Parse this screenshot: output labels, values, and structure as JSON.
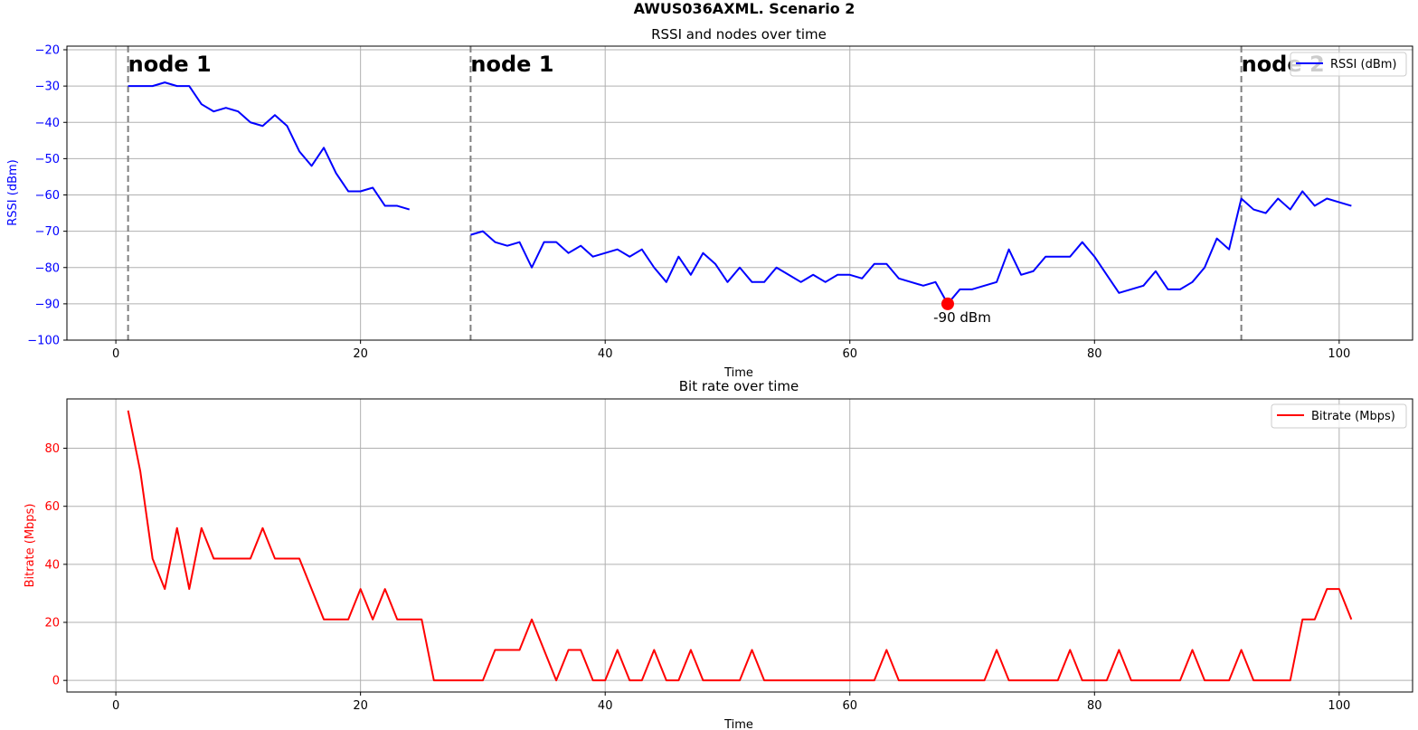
{
  "figure": {
    "suptitle": "AWUS036AXML. Scenario 2"
  },
  "chart_data": [
    {
      "type": "line",
      "title": "RSSI and nodes over time",
      "xlabel": "Time",
      "ylabel": "RSSI (dBm)",
      "xlim": [
        -4,
        106
      ],
      "ylim": [
        -100,
        -19
      ],
      "xticks": [
        0,
        20,
        40,
        60,
        80,
        100
      ],
      "yticks": [
        -100,
        -90,
        -80,
        -70,
        -60,
        -50,
        -40,
        -30,
        -20
      ],
      "grid": true,
      "legend_position": "top-right",
      "series": [
        {
          "name": "RSSI (dBm)",
          "color": "#0000ff",
          "segments": [
            {
              "x": [
                1,
                2,
                3,
                4,
                5,
                6,
                7,
                8,
                9,
                10,
                11,
                12,
                13,
                14,
                15,
                16,
                17,
                18,
                19,
                20,
                21,
                22,
                23,
                24
              ],
              "y": [
                -30,
                -30,
                -30,
                -29,
                -30,
                -30,
                -35,
                -37,
                -36,
                -37,
                -40,
                -41,
                -38,
                -41,
                -48,
                -52,
                -47,
                -54,
                -59,
                -59,
                -58,
                -63,
                -63,
                -64
              ]
            },
            {
              "x": [
                29,
                30,
                31,
                32,
                33,
                34,
                35,
                36,
                37,
                38,
                39,
                40,
                41,
                42,
                43,
                44,
                45,
                46,
                47,
                48,
                49,
                50,
                51,
                52,
                53,
                54,
                55,
                56,
                57,
                58,
                59,
                60,
                61,
                62,
                63,
                64,
                65,
                66,
                67,
                68,
                69,
                70,
                71,
                72,
                73,
                74,
                75,
                76,
                77,
                78,
                79,
                80,
                81,
                82,
                83,
                84,
                85,
                86,
                87,
                88,
                89,
                90,
                91,
                92,
                93,
                94,
                95,
                96,
                97,
                98,
                99,
                100,
                101
              ],
              "y": [
                -71,
                -70,
                -73,
                -74,
                -73,
                -80,
                -73,
                -73,
                -76,
                -74,
                -77,
                -76,
                -75,
                -77,
                -75,
                -80,
                -84,
                -77,
                -82,
                -76,
                -79,
                -84,
                -80,
                -84,
                -84,
                -80,
                -82,
                -84,
                -82,
                -84,
                -82,
                -82,
                -83,
                -79,
                -79,
                -83,
                -84,
                -85,
                -84,
                -90,
                -86,
                -86,
                -85,
                -84,
                -75,
                -82,
                -81,
                -77,
                -77,
                -77,
                -73,
                -77,
                -82,
                -87,
                -86,
                -85,
                -81,
                -86,
                -86,
                -84,
                -80,
                -72,
                -75,
                -61,
                -64,
                -65,
                -61,
                -64,
                -59,
                -63,
                -61,
                -62,
                -63
              ]
            }
          ]
        }
      ],
      "vlines": [
        {
          "x": 1,
          "label": "node 1"
        },
        {
          "x": 29,
          "label": "node 1"
        },
        {
          "x": 92,
          "label": "node 2"
        }
      ],
      "marker": {
        "x": 68,
        "y": -90,
        "label": "-90 dBm",
        "color": "#ff0000"
      }
    },
    {
      "type": "line",
      "title": "Bit rate over time",
      "xlabel": "Time",
      "ylabel": "Bitrate (Mbps)",
      "xlim": [
        -4,
        106
      ],
      "ylim": [
        -4,
        97
      ],
      "xticks": [
        0,
        20,
        40,
        60,
        80,
        100
      ],
      "yticks": [
        0,
        20,
        40,
        60,
        80
      ],
      "grid": true,
      "legend_position": "top-right",
      "series": [
        {
          "name": "Bitrate (Mbps)",
          "color": "#ff0000",
          "segments": [
            {
              "x": [
                1,
                2,
                3,
                4,
                5,
                6,
                7,
                8,
                9,
                10,
                11,
                12,
                13,
                14,
                15,
                16,
                17,
                18,
                19,
                20,
                21,
                22,
                23,
                24,
                25,
                26,
                27,
                28,
                29,
                30,
                31,
                32,
                33,
                34,
                35,
                36,
                37,
                38,
                39,
                40,
                41,
                42,
                43,
                44,
                45,
                46,
                47,
                48,
                49,
                50,
                51,
                52,
                53,
                54,
                55,
                56,
                57,
                58,
                59,
                60,
                61,
                62,
                63,
                64,
                65,
                66,
                67,
                68,
                69,
                70,
                71,
                72,
                73,
                74,
                75,
                76,
                77,
                78,
                79,
                80,
                81,
                82,
                83,
                84,
                85,
                86,
                87,
                88,
                89,
                90,
                91,
                92,
                93,
                94,
                95,
                96,
                97,
                98,
                99,
                100,
                101
              ],
              "y": [
                93,
                72,
                42,
                31.5,
                52.5,
                31.5,
                52.5,
                42,
                42,
                42,
                42,
                52.5,
                42,
                42,
                42,
                31.5,
                21,
                21,
                21,
                31.5,
                21,
                31.5,
                21,
                21,
                21,
                0,
                0,
                0,
                0,
                0,
                10.5,
                10.5,
                10.5,
                21,
                10.5,
                0,
                10.5,
                10.5,
                0,
                0,
                10.5,
                0,
                0,
                10.5,
                0,
                0,
                10.5,
                0,
                0,
                0,
                0,
                10.5,
                0,
                0,
                0,
                0,
                0,
                0,
                0,
                0,
                0,
                0,
                10.5,
                0,
                0,
                0,
                0,
                0,
                0,
                0,
                0,
                10.5,
                0,
                0,
                0,
                0,
                0,
                10.5,
                0,
                0,
                0,
                10.5,
                0,
                0,
                0,
                0,
                0,
                10.5,
                0,
                0,
                0,
                10.5,
                0,
                0,
                0,
                0,
                21,
                21,
                31.5,
                31.5,
                21
              ]
            }
          ]
        }
      ]
    }
  ]
}
